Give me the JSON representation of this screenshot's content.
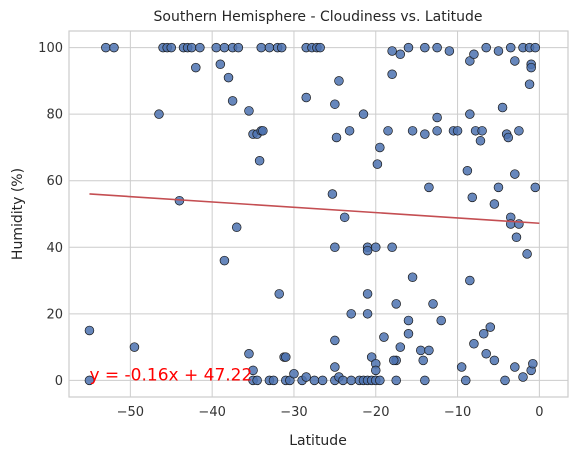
{
  "chart_data": {
    "type": "scatter",
    "title": "Southern Hemisphere - Cloudiness vs. Latitude",
    "xlabel": "Latitude",
    "ylabel": "Humidity (%)",
    "xlim": [
      -57.5,
      3.5
    ],
    "ylim": [
      -5,
      105
    ],
    "xticks": [
      -50,
      -40,
      -30,
      -20,
      -10,
      0
    ],
    "yticks": [
      0,
      20,
      40,
      60,
      80,
      100
    ],
    "grid": true,
    "marker_color": "#4c72b0",
    "marker_edge": "#1a1a1a",
    "regression": {
      "slope": -0.16,
      "intercept": 47.22,
      "x_range": [
        -55,
        0
      ],
      "color": "#c44e52",
      "equation": "y = -0.16x + 47.22",
      "equation_color": "#ff0000",
      "equation_anchor": [
        -55,
        0
      ]
    },
    "points": [
      [
        -53,
        100
      ],
      [
        -52,
        100
      ],
      [
        -46,
        100
      ],
      [
        -45.5,
        100
      ],
      [
        -45,
        100
      ],
      [
        -43.5,
        100
      ],
      [
        -43,
        100
      ],
      [
        -42.5,
        100
      ],
      [
        -41.5,
        100
      ],
      [
        -39.5,
        100
      ],
      [
        -38.5,
        100
      ],
      [
        -37.5,
        100
      ],
      [
        -36.8,
        100
      ],
      [
        -34,
        100
      ],
      [
        -33,
        100
      ],
      [
        -32,
        100
      ],
      [
        -31.5,
        100
      ],
      [
        -28.5,
        100
      ],
      [
        -27.8,
        100
      ],
      [
        -27.2,
        100
      ],
      [
        -26.8,
        100
      ],
      [
        -18,
        99
      ],
      [
        -17,
        98
      ],
      [
        -16,
        100
      ],
      [
        -14,
        100
      ],
      [
        -12.5,
        100
      ],
      [
        -11,
        99
      ],
      [
        -8.5,
        96
      ],
      [
        -8,
        98
      ],
      [
        -6.5,
        100
      ],
      [
        -5,
        99
      ],
      [
        -3.5,
        100
      ],
      [
        -2,
        100
      ],
      [
        -1.2,
        100
      ],
      [
        -0.5,
        100
      ],
      [
        -1,
        95
      ],
      [
        -1,
        94
      ],
      [
        -3,
        96
      ],
      [
        -1.2,
        89
      ],
      [
        -55,
        15
      ],
      [
        -55,
        0
      ],
      [
        -49.5,
        10
      ],
      [
        -46.5,
        80
      ],
      [
        -44,
        54
      ],
      [
        -42,
        94
      ],
      [
        -39,
        95
      ],
      [
        -38,
        91
      ],
      [
        -37.5,
        84
      ],
      [
        -38.5,
        36
      ],
      [
        -37,
        46
      ],
      [
        -35.5,
        81
      ],
      [
        -35,
        74
      ],
      [
        -34.5,
        74
      ],
      [
        -34,
        75
      ],
      [
        -33.8,
        75
      ],
      [
        -34.2,
        66
      ],
      [
        -35.5,
        8
      ],
      [
        -35,
        3
      ],
      [
        -35,
        0
      ],
      [
        -34.5,
        0
      ],
      [
        -33,
        0
      ],
      [
        -32.5,
        0
      ],
      [
        -31.8,
        26
      ],
      [
        -31.2,
        7
      ],
      [
        -31,
        7
      ],
      [
        -31,
        0
      ],
      [
        -30.5,
        0
      ],
      [
        -30,
        2
      ],
      [
        -29,
        0
      ],
      [
        -28.5,
        1
      ],
      [
        -28.5,
        85
      ],
      [
        -27.5,
        0
      ],
      [
        -26.5,
        0
      ],
      [
        -25,
        0
      ],
      [
        -24.5,
        1
      ],
      [
        -24,
        0
      ],
      [
        -23,
        0
      ],
      [
        -22,
        0
      ],
      [
        -21.5,
        0
      ],
      [
        -21,
        0
      ],
      [
        -20.5,
        0
      ],
      [
        -20,
        0
      ],
      [
        -25,
        4
      ],
      [
        -25,
        12
      ],
      [
        -25.3,
        56
      ],
      [
        -25,
        40
      ],
      [
        -24.5,
        90
      ],
      [
        -25,
        83
      ],
      [
        -24.8,
        73
      ],
      [
        -23.2,
        75
      ],
      [
        -23.8,
        49
      ],
      [
        -23,
        20
      ],
      [
        -21.5,
        80
      ],
      [
        -21,
        40
      ],
      [
        -21,
        39
      ],
      [
        -21,
        26
      ],
      [
        -21,
        20
      ],
      [
        -20.5,
        7
      ],
      [
        -20,
        5
      ],
      [
        -20,
        3
      ],
      [
        -20,
        40
      ],
      [
        -19.5,
        70
      ],
      [
        -19.8,
        65
      ],
      [
        -19.5,
        0
      ],
      [
        -19,
        13
      ],
      [
        -18.5,
        75
      ],
      [
        -18,
        92
      ],
      [
        -18,
        40
      ],
      [
        -17.5,
        6
      ],
      [
        -17.8,
        6
      ],
      [
        -17.5,
        23
      ],
      [
        -17,
        10
      ],
      [
        -17.5,
        0
      ],
      [
        -16,
        18
      ],
      [
        -16,
        14
      ],
      [
        -15.5,
        75
      ],
      [
        -15.5,
        31
      ],
      [
        -14.5,
        9
      ],
      [
        -14.2,
        6
      ],
      [
        -14,
        74
      ],
      [
        -14,
        0
      ],
      [
        -13.5,
        9
      ],
      [
        -13.5,
        58
      ],
      [
        -13,
        23
      ],
      [
        -12.5,
        79
      ],
      [
        -12.5,
        75
      ],
      [
        -12,
        18
      ],
      [
        -10.5,
        75
      ],
      [
        -10,
        75
      ],
      [
        -9.5,
        4
      ],
      [
        -9,
        0
      ],
      [
        -8.8,
        63
      ],
      [
        -8.5,
        30
      ],
      [
        -8.5,
        80
      ],
      [
        -8.2,
        55
      ],
      [
        -8,
        11
      ],
      [
        -7.8,
        75
      ],
      [
        -7.2,
        72
      ],
      [
        -7,
        75
      ],
      [
        -6.8,
        14
      ],
      [
        -6.5,
        8
      ],
      [
        -6,
        16
      ],
      [
        -5.5,
        6
      ],
      [
        -5.5,
        53
      ],
      [
        -5,
        58
      ],
      [
        -4.5,
        82
      ],
      [
        -4.2,
        0
      ],
      [
        -4,
        74
      ],
      [
        -3.8,
        73
      ],
      [
        -3.5,
        49
      ],
      [
        -3.5,
        47
      ],
      [
        -3,
        62
      ],
      [
        -3,
        4
      ],
      [
        -2.8,
        43
      ],
      [
        -2.5,
        47
      ],
      [
        -2.5,
        75
      ],
      [
        -2,
        1
      ],
      [
        -1.5,
        38
      ],
      [
        -1,
        3
      ],
      [
        -0.8,
        5
      ],
      [
        -0.5,
        58
      ]
    ]
  }
}
